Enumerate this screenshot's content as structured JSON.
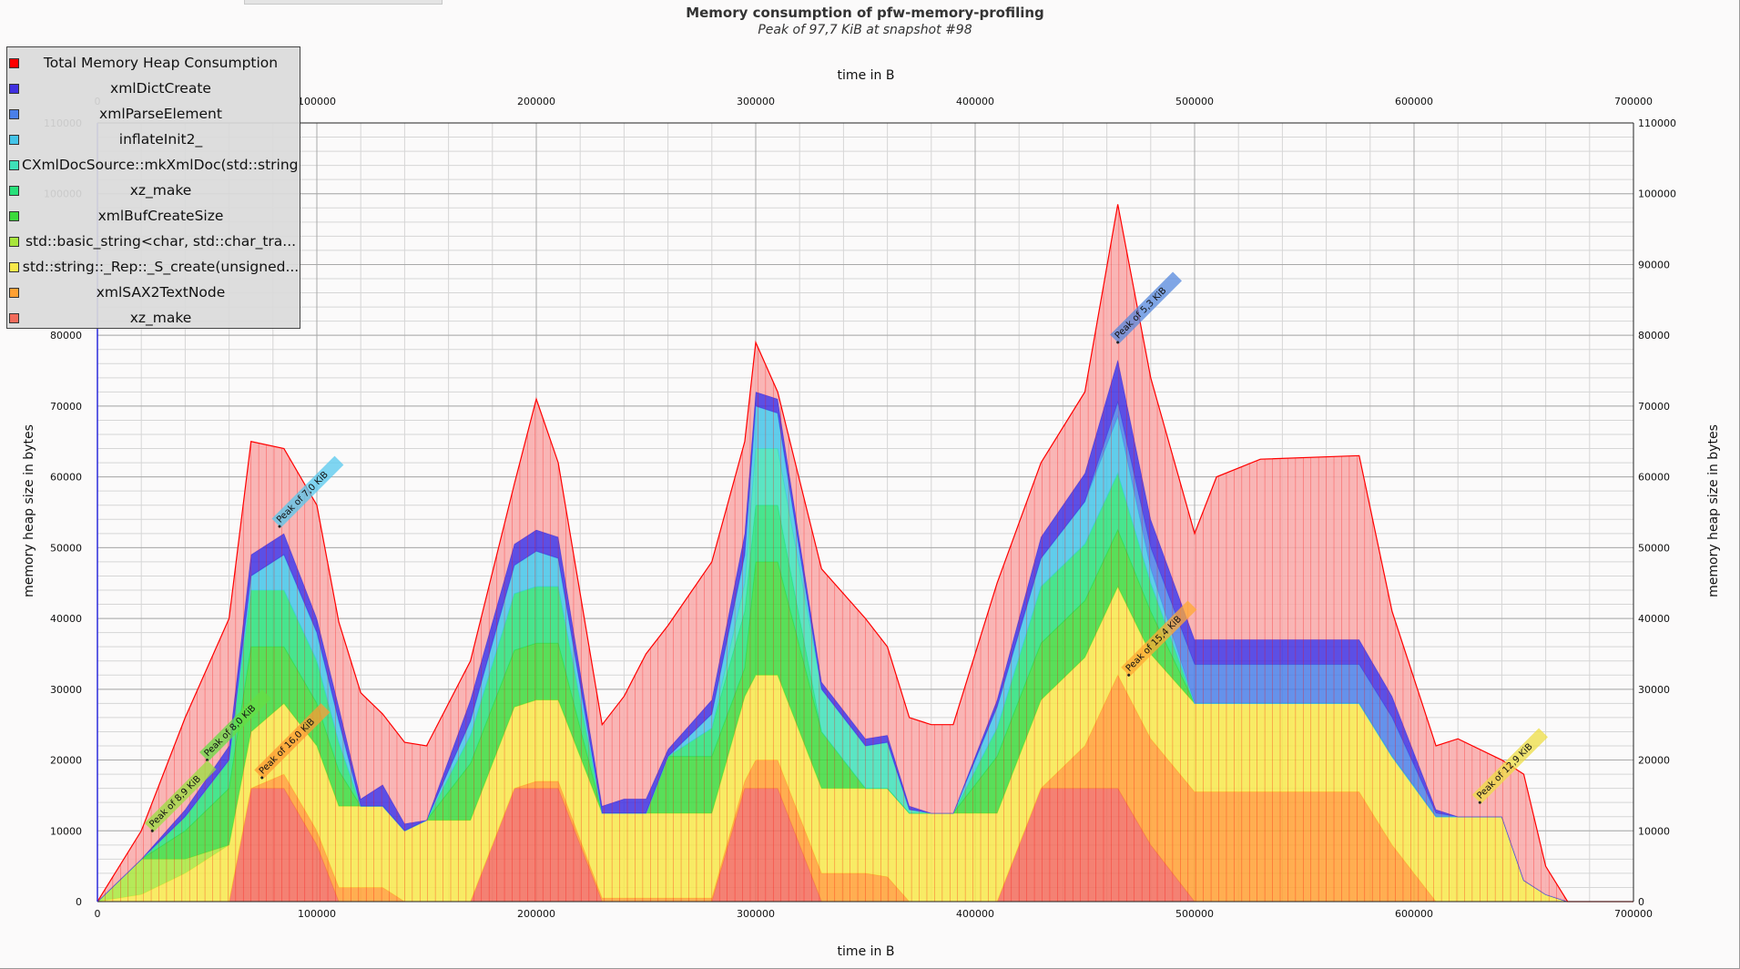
{
  "window": {
    "title": "Memory consumption of pfw-memory-profiling"
  },
  "chart_data": {
    "type": "area",
    "stacked": true,
    "title": "Memory consumption of pfw-memory-profiling",
    "subtitle": "Peak of 97,7 KiB at snapshot #98",
    "xlabel": "time in B",
    "ylabel": "memory heap size in bytes",
    "xlim": [
      0,
      700000
    ],
    "ylim": [
      0,
      110000
    ],
    "xticks": [
      0,
      100000,
      200000,
      300000,
      400000,
      500000,
      600000,
      700000
    ],
    "yticks": [
      0,
      10000,
      20000,
      30000,
      40000,
      50000,
      60000,
      70000,
      80000,
      90000,
      100000,
      110000
    ],
    "grid": true,
    "legend_position": "top-left",
    "total_color": "#ff0000",
    "x": [
      0,
      20000,
      40000,
      60000,
      70000,
      85000,
      100000,
      110000,
      120000,
      130000,
      140000,
      150000,
      170000,
      190000,
      200000,
      210000,
      230000,
      240000,
      250000,
      260000,
      280000,
      295000,
      300000,
      310000,
      330000,
      350000,
      360000,
      370000,
      380000,
      390000,
      410000,
      430000,
      450000,
      465000,
      480000,
      500000,
      510000,
      530000,
      575000,
      590000,
      610000,
      620000,
      640000,
      650000,
      660000,
      670000,
      700000
    ],
    "series": [
      {
        "name": "xz_make",
        "color": "#f26b5b",
        "values": [
          0,
          0,
          0,
          0,
          16000,
          16000,
          8000,
          0,
          0,
          0,
          0,
          0,
          0,
          16000,
          16000,
          16000,
          0,
          0,
          0,
          0,
          0,
          16000,
          16000,
          16000,
          0,
          0,
          0,
          0,
          0,
          0,
          0,
          16000,
          16000,
          16000,
          8000,
          0,
          0,
          0,
          0,
          0,
          0,
          0,
          0,
          0,
          0,
          0,
          0
        ]
      },
      {
        "name": "xmlSAX2TextNode",
        "color": "#ffa033",
        "values": [
          0,
          0,
          0,
          0,
          0,
          2000,
          2000,
          2000,
          2000,
          2000,
          0,
          0,
          0,
          0,
          1000,
          1000,
          500,
          500,
          500,
          500,
          500,
          1000,
          4000,
          4000,
          4000,
          4000,
          3500,
          0,
          0,
          0,
          0,
          0,
          6000,
          16000,
          15000,
          15500,
          15500,
          15500,
          15500,
          8000,
          0,
          0,
          0,
          0,
          0,
          0,
          0
        ]
      },
      {
        "name": "std::string::_Rep::_S_create(unsigned...",
        "color": "#f7e84a",
        "values": [
          0,
          1000,
          4000,
          8000,
          8000,
          10000,
          12000,
          11500,
          11500,
          11500,
          10000,
          11500,
          11500,
          11500,
          11500,
          11500,
          12000,
          12000,
          12000,
          12000,
          12000,
          12000,
          12000,
          12000,
          12000,
          12000,
          12500,
          12500,
          12500,
          12500,
          12500,
          12500,
          12500,
          12500,
          12000,
          12500,
          12500,
          12500,
          12500,
          12500,
          12000,
          12000,
          12000,
          3000,
          1000,
          0,
          0
        ]
      },
      {
        "name": "std::basic_string<char, std::char_tra...",
        "color": "#a8e63c",
        "values": [
          0,
          5000,
          2000,
          0,
          0,
          0,
          0,
          0,
          0,
          0,
          0,
          0,
          0,
          0,
          0,
          0,
          0,
          0,
          0,
          0,
          0,
          0,
          0,
          0,
          0,
          0,
          0,
          0,
          0,
          0,
          0,
          0,
          0,
          0,
          0,
          0,
          0,
          0,
          0,
          0,
          0,
          0,
          0,
          0,
          0,
          0,
          0
        ]
      },
      {
        "name": "xmlBufCreateSize",
        "color": "#3cd93c",
        "values": [
          0,
          0,
          4000,
          8000,
          12000,
          8000,
          6000,
          5000,
          0,
          0,
          0,
          0,
          8000,
          8000,
          8000,
          8000,
          0,
          0,
          0,
          8000,
          8000,
          4000,
          16000,
          16000,
          8000,
          0,
          0,
          0,
          0,
          0,
          8000,
          8000,
          8000,
          8000,
          6000,
          0,
          0,
          0,
          0,
          0,
          0,
          0,
          0,
          0,
          0,
          0,
          0
        ]
      },
      {
        "name": "xz_make",
        "color": "#28e07a",
        "values": [
          0,
          0,
          2000,
          4000,
          8000,
          8000,
          6000,
          4000,
          0,
          0,
          0,
          0,
          4000,
          8000,
          8000,
          8000,
          0,
          0,
          0,
          0,
          4000,
          8000,
          8000,
          8000,
          0,
          0,
          0,
          0,
          0,
          0,
          4000,
          8000,
          8000,
          8000,
          4000,
          0,
          0,
          0,
          0,
          0,
          0,
          0,
          0,
          0,
          0,
          0,
          0
        ]
      },
      {
        "name": "CXmlDocSource::mkXmlDoc(std::string c...",
        "color": "#3ee0b8",
        "values": [
          0,
          0,
          0,
          0,
          0,
          0,
          0,
          0,
          0,
          0,
          0,
          0,
          0,
          0,
          0,
          0,
          0,
          0,
          0,
          0,
          0,
          4000,
          8000,
          8000,
          6000,
          6000,
          6500,
          500,
          0,
          0,
          0,
          0,
          0,
          0,
          0,
          0,
          0,
          0,
          0,
          0,
          0,
          0,
          0,
          0,
          0,
          0,
          0
        ]
      },
      {
        "name": "inflateInit2_",
        "color": "#44c4e8",
        "values": [
          0,
          0,
          0,
          0,
          2000,
          5000,
          4000,
          3000,
          0,
          0,
          0,
          0,
          2000,
          4000,
          5000,
          4000,
          0,
          0,
          0,
          0,
          2000,
          4000,
          6000,
          5000,
          0,
          0,
          0,
          0,
          0,
          0,
          3000,
          4000,
          6000,
          8000,
          2000,
          0,
          0,
          0,
          0,
          0,
          0,
          0,
          0,
          0,
          0,
          0,
          0
        ]
      },
      {
        "name": "xmlParseElement",
        "color": "#4a7fe8",
        "values": [
          0,
          0,
          0,
          0,
          0,
          0,
          0,
          0,
          0,
          0,
          0,
          0,
          0,
          0,
          0,
          0,
          0,
          0,
          0,
          0,
          0,
          0,
          0,
          0,
          0,
          0,
          0,
          0,
          0,
          0,
          0,
          0,
          0,
          2000,
          3000,
          5500,
          5500,
          5500,
          5500,
          5500,
          500,
          0,
          0,
          0,
          0,
          0,
          0
        ]
      },
      {
        "name": "xmlDictCreate",
        "color": "#4030e0",
        "values": [
          0,
          0,
          1000,
          2000,
          3000,
          3000,
          2000,
          2000,
          1000,
          3000,
          1000,
          0,
          3000,
          3000,
          3000,
          3000,
          1000,
          2000,
          2000,
          1000,
          2000,
          3000,
          2000,
          2000,
          1000,
          1000,
          1000,
          500,
          0,
          0,
          1000,
          3000,
          4000,
          6000,
          4000,
          3500,
          3500,
          3500,
          3500,
          3000,
          500,
          0,
          0,
          0,
          0,
          0,
          0
        ]
      },
      {
        "name": "Total Memory Heap Consumption",
        "color": "#f8a8a8",
        "values": [
          0,
          4000,
          13000,
          18000,
          16000,
          12000,
          16000,
          12000,
          15000,
          10000,
          11500,
          10500,
          5500,
          8500,
          18500,
          10500,
          11500,
          14500,
          20500,
          17500,
          19500,
          13000,
          7000,
          1000,
          16000,
          17000,
          12500,
          12500,
          12500,
          12500,
          16500,
          10500,
          11500,
          22000,
          20000,
          15000,
          23000,
          25500,
          26000,
          12000,
          9000,
          11000,
          8000,
          15000,
          4000,
          0,
          0
        ]
      }
    ],
    "annotations": [
      {
        "text": "Peak of 5,3 KiB",
        "x": 465000,
        "y": 79000,
        "color": "#5588dd"
      },
      {
        "text": "Peak of 7,0 KiB",
        "x": 83000,
        "y": 53000,
        "color": "#55c8ee"
      },
      {
        "text": "Peak of 8,0 KiB",
        "x": 50000,
        "y": 20000,
        "color": "#66dd44"
      },
      {
        "text": "Peak of 8,9 KiB",
        "x": 25000,
        "y": 10000,
        "color": "#99e040"
      },
      {
        "text": "Peak of 16,0 KiB",
        "x": 75000,
        "y": 17500,
        "color": "#ff9933"
      },
      {
        "text": "Peak of 15,4 KiB",
        "x": 470000,
        "y": 32000,
        "color": "#ffaa33"
      },
      {
        "text": "Peak of 12,9 KiB",
        "x": 630000,
        "y": 14000,
        "color": "#eedd44"
      }
    ]
  }
}
